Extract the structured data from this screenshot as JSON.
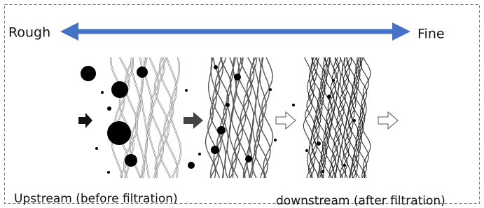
{
  "scale": {
    "left_label": "Rough",
    "right_label": "Fine"
  },
  "labels": {
    "upstream": "Upstream (before filtration)",
    "downstream": "downstream (after filtration)"
  }
}
